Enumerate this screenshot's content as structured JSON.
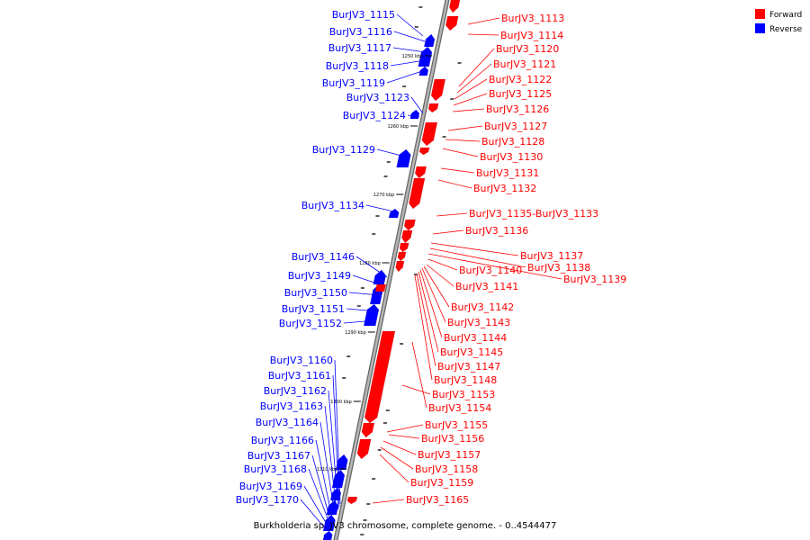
{
  "colors": {
    "forward": "#ff0000",
    "reverse": "#0000ff",
    "backbone": "#9a9a9a",
    "backbone_edge": "#666666"
  },
  "legend": {
    "forward_label": "Forward",
    "reverse_label": "Reverse"
  },
  "caption": "Burkholderia sp. JV3 chromosome, complete genome. - 0..4544477",
  "ticks": [
    "1250 kbp",
    "1260 kbp",
    "1270 kbp",
    "1280 kbp",
    "1290 kbp",
    "1300 kbp",
    "1310 kbp"
  ],
  "reverse_genes": [
    "BurJV3_1115",
    "BurJV3_1116",
    "BurJV3_1117",
    "BurJV3_1118",
    "BurJV3_1119",
    "BurJV3_1123",
    "BurJV3_1124",
    "BurJV3_1129",
    "BurJV3_1134",
    "BurJV3_1146",
    "BurJV3_1149",
    "BurJV3_1150",
    "BurJV3_1151",
    "BurJV3_1152",
    "BurJV3_1160",
    "BurJV3_1161",
    "BurJV3_1162",
    "BurJV3_1163",
    "BurJV3_1164",
    "BurJV3_1166",
    "BurJV3_1167",
    "BurJV3_1168",
    "BurJV3_1169",
    "BurJV3_1170"
  ],
  "forward_genes": [
    "BurJV3_1113",
    "BurJV3_1114",
    "BurJV3_1120",
    "BurJV3_1121",
    "BurJV3_1122",
    "BurJV3_1125",
    "BurJV3_1126",
    "BurJV3_1127",
    "BurJV3_1128",
    "BurJV3_1130",
    "BurJV3_1131",
    "BurJV3_1132",
    "BurJV3_1135-BurJV3_1133",
    "BurJV3_1136",
    "BurJV3_1137",
    "BurJV3_1138",
    "BurJV3_1139",
    "BurJV3_1140",
    "BurJV3_1141",
    "BurJV3_1142",
    "BurJV3_1143",
    "BurJV3_1144",
    "BurJV3_1145",
    "BurJV3_1147",
    "BurJV3_1148",
    "BurJV3_1153",
    "BurJV3_1154",
    "BurJV3_1155",
    "BurJV3_1156",
    "BurJV3_1157",
    "BurJV3_1158",
    "BurJV3_1159",
    "BurJV3_1165"
  ]
}
